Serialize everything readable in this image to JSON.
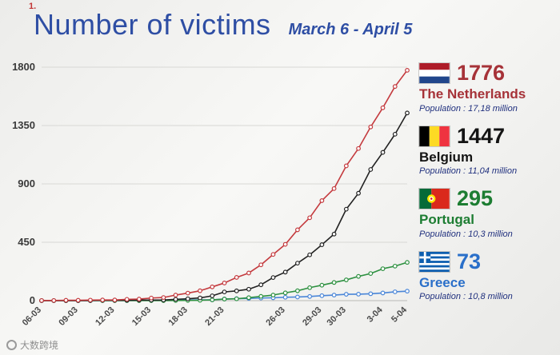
{
  "slide_number": "1.",
  "header": {
    "title": "Number of victims",
    "date_range": "March 6 - April 5"
  },
  "chart_data": {
    "type": "line",
    "title": "Number of victims",
    "xlabel": "",
    "ylabel": "",
    "ylim": [
      0,
      1800
    ],
    "y_ticks": [
      0,
      450,
      900,
      1350,
      1800
    ],
    "grid": true,
    "legend_position": "right",
    "x_tick_labels": [
      "06-03",
      "09-03",
      "12-03",
      "15-03",
      "18-03",
      "21-03",
      "26-03",
      "29-03",
      "30-03",
      "3-04",
      "5-04"
    ],
    "x_tick_days": [
      0,
      3,
      6,
      9,
      12,
      15,
      20,
      23,
      25,
      28,
      30
    ],
    "series": [
      {
        "name": "The Netherlands",
        "color": "#c43a3e",
        "values": [
          1,
          1,
          3,
          3,
          4,
          5,
          5,
          10,
          12,
          20,
          24,
          43,
          58,
          76,
          106,
          136,
          179,
          213,
          276,
          356,
          434,
          546,
          639,
          771,
          864,
          1039,
          1173,
          1339,
          1487,
          1651,
          1776
        ]
      },
      {
        "name": "Belgium",
        "color": "#222222",
        "values": [
          0,
          0,
          0,
          0,
          1,
          3,
          3,
          3,
          4,
          4,
          5,
          10,
          14,
          21,
          37,
          67,
          75,
          88,
          122,
          178,
          220,
          289,
          353,
          431,
          513,
          705,
          828,
          1011,
          1143,
          1283,
          1447
        ]
      },
      {
        "name": "Portugal",
        "color": "#2e9141",
        "values": [
          0,
          0,
          0,
          0,
          0,
          0,
          0,
          0,
          0,
          0,
          0,
          1,
          2,
          3,
          6,
          12,
          14,
          23,
          33,
          43,
          60,
          76,
          100,
          119,
          140,
          160,
          187,
          209,
          246,
          266,
          295
        ]
      },
      {
        "name": "Greece",
        "color": "#4a86d8",
        "values": [
          0,
          0,
          0,
          0,
          0,
          1,
          1,
          1,
          3,
          4,
          4,
          5,
          5,
          6,
          6,
          13,
          15,
          17,
          20,
          22,
          26,
          28,
          32,
          38,
          43,
          49,
          50,
          53,
          59,
          68,
          73
        ]
      }
    ]
  },
  "legend": {
    "items": [
      {
        "flag": "netherlands-flag",
        "value": "1776",
        "country": "The Netherlands",
        "population": "Population : 17,18 million",
        "color": "#a63238"
      },
      {
        "flag": "belgium-flag",
        "value": "1447",
        "country": "Belgium",
        "population": "Population : 11,04 million",
        "color": "#141414"
      },
      {
        "flag": "portugal-flag",
        "value": "295",
        "country": "Portugal",
        "population": "Population : 10,3 million",
        "color": "#1d7d32"
      },
      {
        "flag": "greece-flag",
        "value": "73",
        "country": "Greece",
        "population": "Population : 10,8 million",
        "color": "#2a6fc9"
      }
    ]
  },
  "watermark": {
    "text": "大数跨境"
  }
}
